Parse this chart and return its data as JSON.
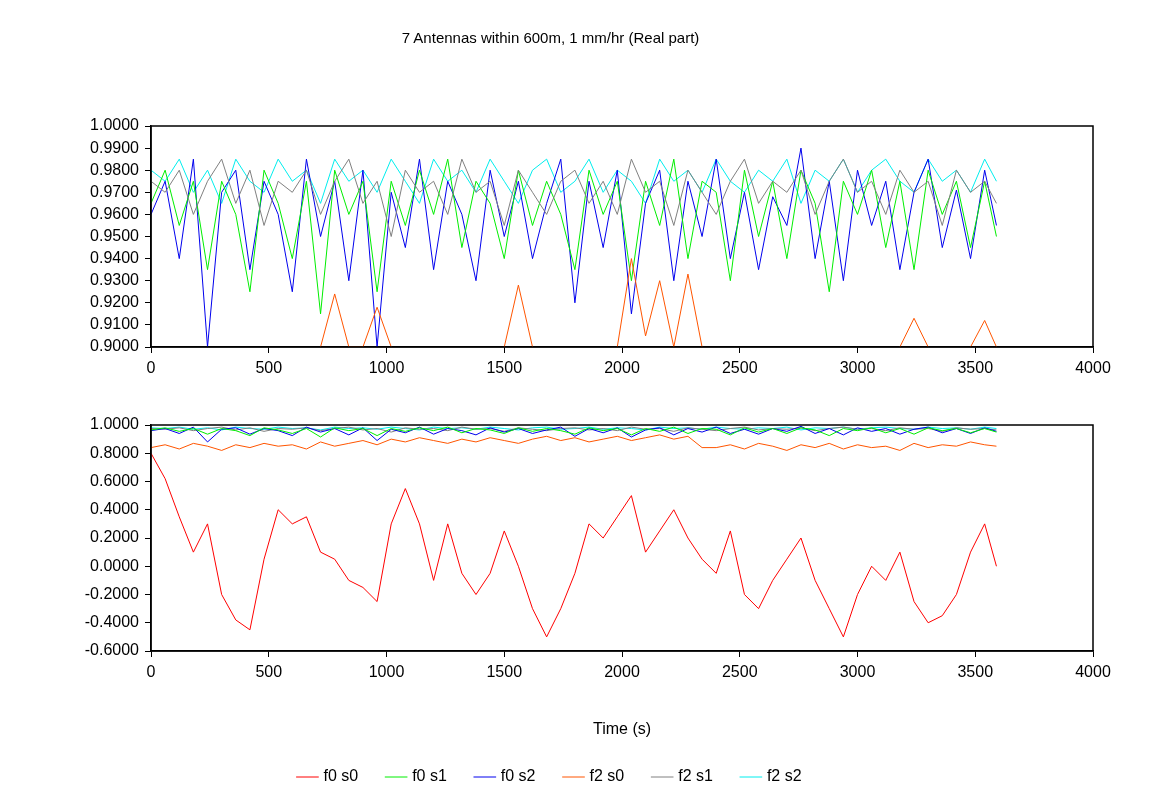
{
  "chart_data": [
    {
      "type": "line",
      "title": "7 Antennas within 600m, 1 mm/hr (Real part)",
      "x": [
        0,
        60,
        120,
        180,
        240,
        300,
        360,
        420,
        480,
        540,
        600,
        660,
        720,
        780,
        840,
        900,
        960,
        1020,
        1080,
        1140,
        1200,
        1260,
        1320,
        1380,
        1440,
        1500,
        1560,
        1620,
        1680,
        1740,
        1800,
        1860,
        1920,
        1980,
        2040,
        2100,
        2160,
        2220,
        2280,
        2340,
        2400,
        2460,
        2520,
        2580,
        2640,
        2700,
        2760,
        2820,
        2880,
        2940,
        3000,
        3060,
        3120,
        3180,
        3240,
        3300,
        3360,
        3420,
        3480,
        3540,
        3590
      ],
      "xlim": [
        0,
        4000
      ],
      "xticks": [
        0,
        500,
        1000,
        1500,
        2000,
        2500,
        3000,
        3500,
        4000
      ],
      "ylim": [
        0.9,
        1.0
      ],
      "yticks": [
        {
          "value": 0.9,
          "label": "0.9000"
        },
        {
          "value": 0.91,
          "label": "0.9100"
        },
        {
          "value": 0.92,
          "label": "0.9200"
        },
        {
          "value": 0.93,
          "label": "0.9300"
        },
        {
          "value": 0.94,
          "label": "0.9400"
        },
        {
          "value": 0.95,
          "label": "0.9500"
        },
        {
          "value": 0.96,
          "label": "0.9600"
        },
        {
          "value": 0.97,
          "label": "0.9700"
        },
        {
          "value": 0.98,
          "label": "0.9800"
        },
        {
          "value": 0.99,
          "label": "0.9900"
        },
        {
          "value": 1.0,
          "label": "1.0000"
        }
      ],
      "grid": false,
      "legend": false,
      "line_style": "solid",
      "series": [
        {
          "color": "#ff5500",
          "values": [
            null,
            null,
            null,
            null,
            null,
            null,
            null,
            null,
            null,
            null,
            null,
            null,
            0.9,
            0.924,
            0.9,
            0.9,
            0.918,
            0.9,
            null,
            null,
            null,
            null,
            null,
            null,
            null,
            0.9,
            0.928,
            0.9,
            null,
            null,
            null,
            null,
            null,
            0.9,
            0.94,
            0.905,
            0.93,
            0.9,
            0.933,
            0.9,
            null,
            null,
            null,
            null,
            null,
            null,
            null,
            null,
            null,
            null,
            null,
            null,
            null,
            0.9,
            0.913,
            0.9,
            null,
            null,
            0.9,
            0.912,
            0.9
          ]
        },
        {
          "color": "#808080",
          "values": [
            0.975,
            0.97,
            0.98,
            0.96,
            0.975,
            0.985,
            0.965,
            0.98,
            0.955,
            0.975,
            0.97,
            0.98,
            0.96,
            0.975,
            0.985,
            0.965,
            0.975,
            0.95,
            0.98,
            0.97,
            0.975,
            0.96,
            0.985,
            0.97,
            0.975,
            0.955,
            0.98,
            0.97,
            0.96,
            0.975,
            0.98,
            0.965,
            0.975,
            0.96,
            0.985,
            0.97,
            0.975,
            0.955,
            0.98,
            0.97,
            0.96,
            0.975,
            0.985,
            0.965,
            0.975,
            0.97,
            0.98,
            0.96,
            0.975,
            0.985,
            0.97,
            0.975,
            0.96,
            0.98,
            0.97,
            0.975,
            0.955,
            0.98,
            0.97,
            0.975,
            0.965
          ]
        },
        {
          "color": "#00ee00",
          "values": [
            0.965,
            0.98,
            0.955,
            0.975,
            0.935,
            0.975,
            0.96,
            0.925,
            0.98,
            0.965,
            0.94,
            0.975,
            0.915,
            0.98,
            0.96,
            0.975,
            0.925,
            0.975,
            0.955,
            0.98,
            0.96,
            0.985,
            0.945,
            0.975,
            0.965,
            0.94,
            0.98,
            0.955,
            0.975,
            0.96,
            0.935,
            0.98,
            0.96,
            0.975,
            0.93,
            0.975,
            0.955,
            0.985,
            0.94,
            0.975,
            0.97,
            0.93,
            0.98,
            0.95,
            0.975,
            0.94,
            0.98,
            0.965,
            0.925,
            0.975,
            0.96,
            0.98,
            0.945,
            0.975,
            0.935,
            0.98,
            0.96,
            0.975,
            0.945,
            0.975,
            0.95
          ]
        },
        {
          "color": "#0000ee",
          "values": [
            0.96,
            0.975,
            0.94,
            0.985,
            0.9,
            0.97,
            0.98,
            0.935,
            0.975,
            0.96,
            0.925,
            0.985,
            0.95,
            0.975,
            0.93,
            0.98,
            0.9,
            0.97,
            0.945,
            0.985,
            0.935,
            0.975,
            0.96,
            0.93,
            0.98,
            0.95,
            0.975,
            0.94,
            0.965,
            0.985,
            0.92,
            0.975,
            0.945,
            0.98,
            0.915,
            0.965,
            0.98,
            0.93,
            0.975,
            0.95,
            0.985,
            0.94,
            0.97,
            0.935,
            0.968,
            0.955,
            0.99,
            0.94,
            0.975,
            0.93,
            0.98,
            0.955,
            0.975,
            0.935,
            0.97,
            0.985,
            0.945,
            0.971,
            0.94,
            0.98,
            0.955
          ]
        },
        {
          "color": "#00eeee",
          "values": [
            0.98,
            0.975,
            0.985,
            0.97,
            0.98,
            0.965,
            0.985,
            0.975,
            0.97,
            0.985,
            0.975,
            0.98,
            0.965,
            0.985,
            0.975,
            0.98,
            0.97,
            0.985,
            0.975,
            0.965,
            0.985,
            0.975,
            0.98,
            0.97,
            0.985,
            0.975,
            0.965,
            0.98,
            0.985,
            0.97,
            0.975,
            0.985,
            0.97,
            0.98,
            0.975,
            0.965,
            0.985,
            0.975,
            0.98,
            0.97,
            0.985,
            0.975,
            0.97,
            0.98,
            0.975,
            0.985,
            0.965,
            0.98,
            0.975,
            0.985,
            0.97,
            0.98,
            0.985,
            0.975,
            0.97,
            0.985,
            0.975,
            0.98,
            0.97,
            0.985,
            0.975
          ]
        }
      ]
    },
    {
      "type": "line",
      "xlabel": "Time (s)",
      "x": [
        0,
        60,
        120,
        180,
        240,
        300,
        360,
        420,
        480,
        540,
        600,
        660,
        720,
        780,
        840,
        900,
        960,
        1020,
        1080,
        1140,
        1200,
        1260,
        1320,
        1380,
        1440,
        1500,
        1560,
        1620,
        1680,
        1740,
        1800,
        1860,
        1920,
        1980,
        2040,
        2100,
        2160,
        2220,
        2280,
        2340,
        2400,
        2460,
        2520,
        2580,
        2640,
        2700,
        2760,
        2820,
        2880,
        2940,
        3000,
        3060,
        3120,
        3180,
        3240,
        3300,
        3360,
        3420,
        3480,
        3540,
        3590
      ],
      "xlim": [
        0,
        4000
      ],
      "xticks": [
        0,
        500,
        1000,
        1500,
        2000,
        2500,
        3000,
        3500,
        4000
      ],
      "ylim": [
        -0.6,
        1.0
      ],
      "yticks": [
        {
          "value": -0.6,
          "label": "-0.6000"
        },
        {
          "value": -0.4,
          "label": "-0.4000"
        },
        {
          "value": -0.2,
          "label": "-0.2000"
        },
        {
          "value": 0,
          "label": "0.0000"
        },
        {
          "value": 0.2,
          "label": "0.2000"
        },
        {
          "value": 0.4,
          "label": "0.4000"
        },
        {
          "value": 0.6,
          "label": "0.6000"
        },
        {
          "value": 0.8,
          "label": "0.8000"
        },
        {
          "value": 1.0,
          "label": "1.0000"
        }
      ],
      "grid": false,
      "legend": "bottom",
      "line_style": "solid",
      "series": [
        {
          "name": "f0 s0",
          "color": "#ff0000",
          "values": [
            0.8,
            0.62,
            0.35,
            0.1,
            0.3,
            -0.2,
            -0.38,
            -0.45,
            0.05,
            0.4,
            0.3,
            0.35,
            0.1,
            0.05,
            -0.1,
            -0.15,
            -0.25,
            0.3,
            0.55,
            0.3,
            -0.1,
            0.3,
            -0.05,
            -0.2,
            -0.05,
            0.25,
            0.0,
            -0.3,
            -0.5,
            -0.3,
            -0.05,
            0.3,
            0.2,
            0.35,
            0.5,
            0.1,
            0.25,
            0.4,
            0.2,
            0.05,
            -0.05,
            0.25,
            -0.2,
            -0.3,
            -0.1,
            0.05,
            0.2,
            -0.1,
            -0.3,
            -0.5,
            -0.2,
            0.0,
            -0.1,
            0.1,
            -0.25,
            -0.4,
            -0.35,
            -0.2,
            0.1,
            0.3,
            0.0
          ]
        },
        {
          "name": "f0 s1",
          "color": "#00ee00",
          "values": [
            0.965,
            0.98,
            0.955,
            0.975,
            0.935,
            0.975,
            0.96,
            0.925,
            0.98,
            0.965,
            0.94,
            0.975,
            0.915,
            0.98,
            0.96,
            0.975,
            0.925,
            0.975,
            0.955,
            0.98,
            0.96,
            0.985,
            0.945,
            0.975,
            0.965,
            0.94,
            0.98,
            0.955,
            0.975,
            0.96,
            0.935,
            0.98,
            0.96,
            0.975,
            0.93,
            0.975,
            0.955,
            0.985,
            0.94,
            0.975,
            0.97,
            0.93,
            0.98,
            0.95,
            0.975,
            0.94,
            0.98,
            0.965,
            0.925,
            0.975,
            0.96,
            0.98,
            0.945,
            0.975,
            0.935,
            0.98,
            0.96,
            0.975,
            0.945,
            0.975,
            0.95
          ]
        },
        {
          "name": "f0 s2",
          "color": "#0000ee",
          "values": [
            0.96,
            0.975,
            0.94,
            0.985,
            0.88,
            0.97,
            0.98,
            0.935,
            0.975,
            0.96,
            0.925,
            0.985,
            0.95,
            0.975,
            0.93,
            0.98,
            0.89,
            0.97,
            0.945,
            0.985,
            0.935,
            0.975,
            0.96,
            0.93,
            0.98,
            0.95,
            0.975,
            0.94,
            0.965,
            0.985,
            0.92,
            0.975,
            0.945,
            0.98,
            0.915,
            0.965,
            0.98,
            0.93,
            0.975,
            0.95,
            0.985,
            0.94,
            0.97,
            0.935,
            0.975,
            0.955,
            0.99,
            0.94,
            0.975,
            0.93,
            0.98,
            0.955,
            0.975,
            0.935,
            0.97,
            0.985,
            0.945,
            0.975,
            0.94,
            0.98,
            0.955
          ]
        },
        {
          "name": "f2 s0",
          "color": "#ff5500",
          "values": [
            0.84,
            0.86,
            0.83,
            0.87,
            0.85,
            0.82,
            0.86,
            0.84,
            0.87,
            0.85,
            0.86,
            0.83,
            0.88,
            0.85,
            0.87,
            0.89,
            0.86,
            0.9,
            0.88,
            0.91,
            0.89,
            0.87,
            0.9,
            0.88,
            0.91,
            0.89,
            0.87,
            0.9,
            0.92,
            0.89,
            0.91,
            0.88,
            0.9,
            0.92,
            0.89,
            0.91,
            0.93,
            0.9,
            0.92,
            0.84,
            0.84,
            0.86,
            0.83,
            0.87,
            0.85,
            0.82,
            0.86,
            0.84,
            0.87,
            0.83,
            0.86,
            0.84,
            0.85,
            0.82,
            0.87,
            0.84,
            0.86,
            0.85,
            0.88,
            0.86,
            0.85
          ]
        },
        {
          "name": "f2 s1",
          "color": "#808080",
          "values": [
            0.975,
            0.97,
            0.98,
            0.96,
            0.975,
            0.985,
            0.965,
            0.98,
            0.955,
            0.975,
            0.97,
            0.98,
            0.96,
            0.975,
            0.985,
            0.965,
            0.975,
            0.95,
            0.98,
            0.97,
            0.975,
            0.96,
            0.985,
            0.97,
            0.975,
            0.955,
            0.98,
            0.97,
            0.96,
            0.975,
            0.98,
            0.965,
            0.975,
            0.96,
            0.985,
            0.97,
            0.975,
            0.955,
            0.98,
            0.97,
            0.96,
            0.975,
            0.985,
            0.965,
            0.975,
            0.97,
            0.98,
            0.96,
            0.975,
            0.985,
            0.97,
            0.975,
            0.96,
            0.98,
            0.97,
            0.975,
            0.955,
            0.98,
            0.97,
            0.975,
            0.965
          ]
        },
        {
          "name": "f2 s2",
          "color": "#00eeee",
          "values": [
            0.98,
            0.975,
            0.985,
            0.97,
            0.98,
            0.965,
            0.985,
            0.975,
            0.97,
            0.985,
            0.975,
            0.98,
            0.965,
            0.985,
            0.975,
            0.98,
            0.97,
            0.985,
            0.975,
            0.965,
            0.985,
            0.975,
            0.98,
            0.97,
            0.985,
            0.975,
            0.965,
            0.98,
            0.985,
            0.97,
            0.975,
            0.985,
            0.97,
            0.98,
            0.975,
            0.965,
            0.985,
            0.975,
            0.98,
            0.97,
            0.985,
            0.975,
            0.97,
            0.98,
            0.975,
            0.985,
            0.965,
            0.98,
            0.975,
            0.985,
            0.97,
            0.98,
            0.985,
            0.975,
            0.97,
            0.985,
            0.975,
            0.98,
            0.97,
            0.985,
            0.975
          ]
        }
      ]
    }
  ]
}
